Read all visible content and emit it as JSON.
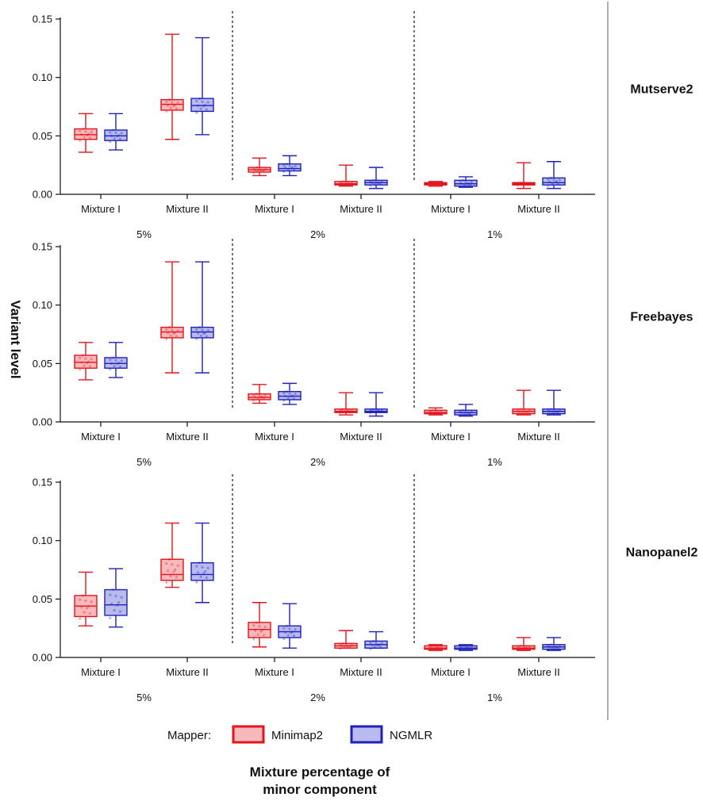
{
  "chart_data": {
    "type": "boxplot",
    "ylabel": "Variant level",
    "xlabel_lines": [
      "Mixture percentage of",
      "minor component"
    ],
    "yticks": [
      "0.00",
      "0.05",
      "0.10",
      "0.15"
    ],
    "ylim": [
      0,
      0.15
    ],
    "legend": {
      "title": "Mapper:",
      "entries": [
        {
          "name": "Minimap2",
          "stroke": "#e3141c",
          "fill": "#f7b9bc"
        },
        {
          "name": "NGMLR",
          "stroke": "#1f22b8",
          "fill": "#b9bbef"
        }
      ]
    },
    "groups": [
      "5%",
      "2%",
      "1%"
    ],
    "categories": [
      "Mixture I",
      "Mixture II",
      "Mixture I",
      "Mixture II",
      "Mixture I",
      "Mixture II"
    ],
    "panels": [
      {
        "title": "Mutserve2",
        "series": [
          {
            "name": "Minimap2",
            "boxes": [
              {
                "min": 0.036,
                "q1": 0.047,
                "median": 0.051,
                "q3": 0.056,
                "max": 0.069
              },
              {
                "min": 0.047,
                "q1": 0.072,
                "median": 0.077,
                "q3": 0.081,
                "max": 0.137
              },
              {
                "min": 0.016,
                "q1": 0.019,
                "median": 0.021,
                "q3": 0.023,
                "max": 0.031
              },
              {
                "min": 0.007,
                "q1": 0.008,
                "median": 0.009,
                "q3": 0.011,
                "max": 0.025
              },
              {
                "min": 0.007,
                "q1": 0.008,
                "median": 0.009,
                "q3": 0.01,
                "max": 0.011
              },
              {
                "min": 0.005,
                "q1": 0.008,
                "median": 0.009,
                "q3": 0.01,
                "max": 0.027
              }
            ]
          },
          {
            "name": "NGMLR",
            "boxes": [
              {
                "min": 0.038,
                "q1": 0.046,
                "median": 0.05,
                "q3": 0.055,
                "max": 0.069
              },
              {
                "min": 0.051,
                "q1": 0.071,
                "median": 0.076,
                "q3": 0.082,
                "max": 0.134
              },
              {
                "min": 0.016,
                "q1": 0.02,
                "median": 0.022,
                "q3": 0.026,
                "max": 0.033
              },
              {
                "min": 0.005,
                "q1": 0.008,
                "median": 0.01,
                "q3": 0.012,
                "max": 0.023
              },
              {
                "min": 0.006,
                "q1": 0.007,
                "median": 0.009,
                "q3": 0.012,
                "max": 0.015
              },
              {
                "min": 0.005,
                "q1": 0.008,
                "median": 0.01,
                "q3": 0.014,
                "max": 0.028
              }
            ]
          }
        ]
      },
      {
        "title": "Freebayes",
        "series": [
          {
            "name": "Minimap2",
            "boxes": [
              {
                "min": 0.036,
                "q1": 0.046,
                "median": 0.051,
                "q3": 0.057,
                "max": 0.068
              },
              {
                "min": 0.042,
                "q1": 0.072,
                "median": 0.077,
                "q3": 0.081,
                "max": 0.137
              },
              {
                "min": 0.016,
                "q1": 0.019,
                "median": 0.021,
                "q3": 0.024,
                "max": 0.032
              },
              {
                "min": 0.006,
                "q1": 0.008,
                "median": 0.009,
                "q3": 0.011,
                "max": 0.025
              },
              {
                "min": 0.006,
                "q1": 0.007,
                "median": 0.008,
                "q3": 0.01,
                "max": 0.012
              },
              {
                "min": 0.006,
                "q1": 0.007,
                "median": 0.009,
                "q3": 0.011,
                "max": 0.027
              }
            ]
          },
          {
            "name": "NGMLR",
            "boxes": [
              {
                "min": 0.038,
                "q1": 0.046,
                "median": 0.05,
                "q3": 0.055,
                "max": 0.068
              },
              {
                "min": 0.042,
                "q1": 0.072,
                "median": 0.077,
                "q3": 0.081,
                "max": 0.137
              },
              {
                "min": 0.015,
                "q1": 0.019,
                "median": 0.022,
                "q3": 0.026,
                "max": 0.033
              },
              {
                "min": 0.005,
                "q1": 0.008,
                "median": 0.009,
                "q3": 0.011,
                "max": 0.025
              },
              {
                "min": 0.005,
                "q1": 0.006,
                "median": 0.008,
                "q3": 0.01,
                "max": 0.015
              },
              {
                "min": 0.006,
                "q1": 0.007,
                "median": 0.009,
                "q3": 0.011,
                "max": 0.027
              }
            ]
          }
        ]
      },
      {
        "title": "Nanopanel2",
        "series": [
          {
            "name": "Minimap2",
            "boxes": [
              {
                "min": 0.027,
                "q1": 0.035,
                "median": 0.044,
                "q3": 0.053,
                "max": 0.073
              },
              {
                "min": 0.06,
                "q1": 0.066,
                "median": 0.071,
                "q3": 0.084,
                "max": 0.115
              },
              {
                "min": 0.009,
                "q1": 0.017,
                "median": 0.024,
                "q3": 0.03,
                "max": 0.047
              },
              {
                "min": 0.008,
                "q1": 0.008,
                "median": 0.01,
                "q3": 0.012,
                "max": 0.023
              },
              {
                "min": 0.006,
                "q1": 0.007,
                "median": 0.008,
                "q3": 0.01,
                "max": 0.011
              },
              {
                "min": 0.006,
                "q1": 0.007,
                "median": 0.008,
                "q3": 0.01,
                "max": 0.017
              }
            ]
          },
          {
            "name": "NGMLR",
            "boxes": [
              {
                "min": 0.026,
                "q1": 0.036,
                "median": 0.045,
                "q3": 0.058,
                "max": 0.076
              },
              {
                "min": 0.047,
                "q1": 0.066,
                "median": 0.071,
                "q3": 0.081,
                "max": 0.115
              },
              {
                "min": 0.008,
                "q1": 0.017,
                "median": 0.022,
                "q3": 0.027,
                "max": 0.046
              },
              {
                "min": 0.008,
                "q1": 0.008,
                "median": 0.011,
                "q3": 0.014,
                "max": 0.022
              },
              {
                "min": 0.006,
                "q1": 0.007,
                "median": 0.008,
                "q3": 0.01,
                "max": 0.011
              },
              {
                "min": 0.006,
                "q1": 0.007,
                "median": 0.009,
                "q3": 0.011,
                "max": 0.017
              }
            ]
          }
        ]
      }
    ]
  }
}
